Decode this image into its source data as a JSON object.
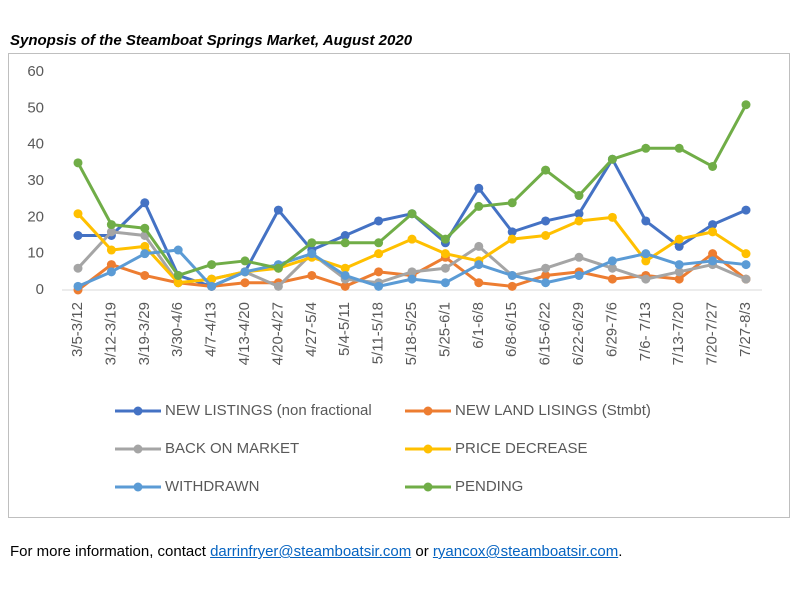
{
  "title": "Synopsis of the Steamboat Springs Market, August 2020",
  "chart_data": {
    "type": "line",
    "categories": [
      "3/5-3/12",
      "3/12-3/19",
      "3/19-3/29",
      "3/30-4/6",
      "4/7-4/13",
      "4/13-4/20",
      "4/20-4/27",
      "4/27-5/4",
      "5/4-5/11",
      "5/11-5/18",
      "5/18-5/25",
      "5/25-6/1",
      "6/1-6/8",
      "6/8-6/15",
      "6/15-6/22",
      "6/22-6/29",
      "6/29-7/6",
      "7/6- 7/13",
      "7/13-7/20",
      "7/20-7/27",
      "7/27-8/3"
    ],
    "series": [
      {
        "name": "NEW LISTINGS (non fractional",
        "color": "#4472c4",
        "values": [
          15,
          15,
          24,
          4,
          1,
          5,
          22,
          11,
          15,
          19,
          21,
          13,
          28,
          16,
          19,
          21,
          36,
          19,
          12,
          18,
          22
        ]
      },
      {
        "name": "NEW LAND LISINGS (Stmbt)",
        "color": "#ed7d31",
        "values": [
          0,
          7,
          4,
          2,
          1,
          2,
          2,
          4,
          1,
          5,
          4,
          9,
          2,
          1,
          4,
          5,
          3,
          4,
          3,
          10,
          3
        ]
      },
      {
        "name": "BACK ON MARKET",
        "color": "#a5a5a5",
        "values": [
          6,
          16,
          15,
          2,
          3,
          5,
          1,
          10,
          3,
          2,
          5,
          6,
          12,
          4,
          6,
          9,
          6,
          3,
          5,
          7,
          3
        ]
      },
      {
        "name": "PRICE DECREASE",
        "color": "#ffc000",
        "values": [
          21,
          11,
          12,
          2,
          3,
          5,
          6,
          9,
          6,
          10,
          14,
          10,
          8,
          14,
          15,
          19,
          20,
          8,
          14,
          16,
          10
        ]
      },
      {
        "name": "WITHDRAWN",
        "color": "#5b9bd5",
        "values": [
          1,
          5,
          10,
          11,
          1,
          5,
          7,
          10,
          4,
          1,
          3,
          2,
          7,
          4,
          2,
          4,
          8,
          10,
          7,
          8,
          7
        ]
      },
      {
        "name": "PENDING",
        "color": "#70ad47",
        "values": [
          35,
          18,
          17,
          4,
          7,
          8,
          6,
          13,
          13,
          13,
          21,
          14,
          23,
          24,
          33,
          26,
          36,
          39,
          39,
          34,
          51
        ]
      }
    ],
    "ylim": [
      0,
      60
    ],
    "yticks": [
      0,
      10,
      20,
      30,
      40,
      50,
      60
    ]
  },
  "footer": {
    "before": "For more information, contact ",
    "email1": "darrinfryer@steamboatsir.com",
    "middle": " or ",
    "email2": "ryancox@steamboatsir.com",
    "after": "."
  }
}
